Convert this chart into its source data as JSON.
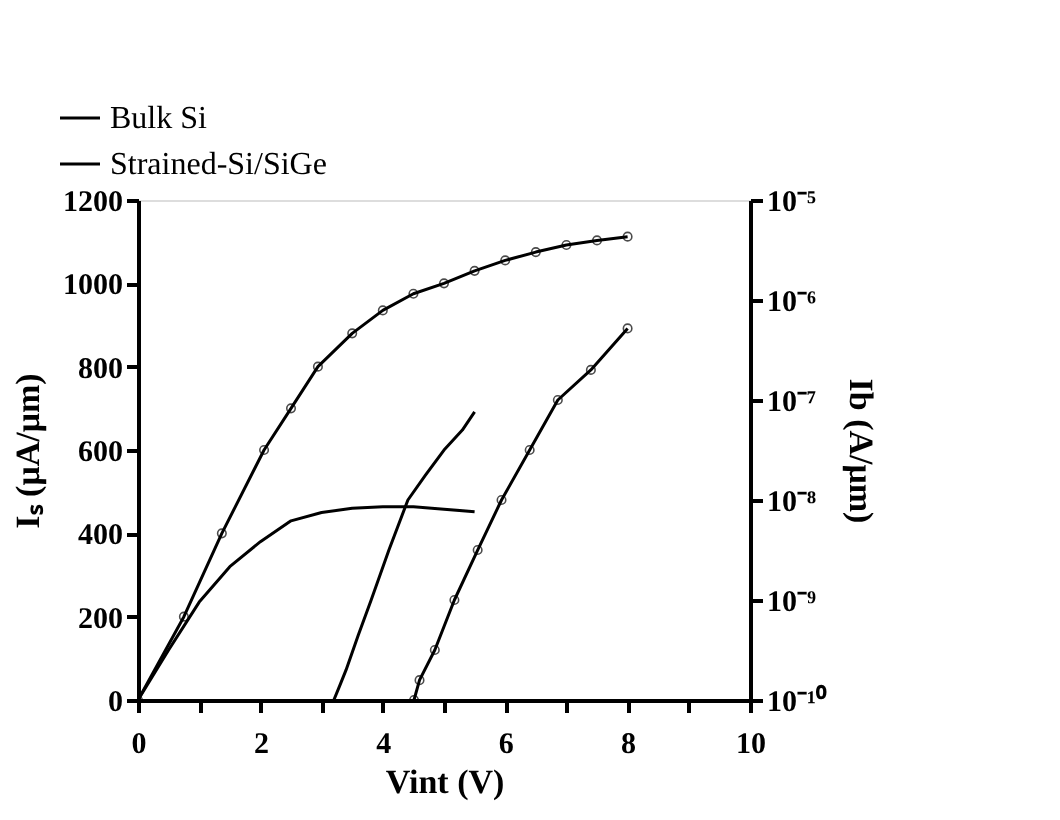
{
  "chart_data": {
    "type": "line",
    "xlabel": "Vint (V)",
    "ylabel": "Iₛ (μA/μm)",
    "y2label": "Ib (A/μm)",
    "xlim": [
      0,
      10
    ],
    "xticks": [
      0,
      {
        "value": 1,
        "label": null
      },
      2,
      {
        "value": 3,
        "label": null
      },
      4,
      {
        "value": 5,
        "label": null
      },
      6,
      {
        "value": 7,
        "label": null
      },
      8,
      {
        "value": 9,
        "label": null
      },
      10
    ],
    "ylim": [
      0,
      1200
    ],
    "yticks": [
      0,
      200,
      400,
      600,
      800,
      1000,
      1200
    ],
    "y2lim": [
      1e-10,
      1e-05
    ],
    "y2ticks": [
      {
        "value": 1e-10,
        "label": "10⁻¹⁰"
      },
      {
        "value": 1e-09,
        "label": "10⁻⁹"
      },
      {
        "value": 1e-08,
        "label": "10⁻⁸"
      },
      {
        "value": 1e-07,
        "label": "10⁻⁷"
      },
      {
        "value": 1e-06,
        "label": "10⁻⁶"
      },
      {
        "value": 1e-05,
        "label": "10⁻⁵"
      }
    ],
    "log": "y2",
    "grid": false,
    "legend": "top left",
    "series": [
      {
        "name": "Bulk Si",
        "color": "#000000",
        "marker": "circle",
        "line_style": "solid",
        "x": [
          0,
          0.75,
          1.37,
          2.06,
          2.5,
          2.94,
          3.5,
          4,
          4.5,
          5,
          5.5,
          6,
          6.5,
          7,
          7.5,
          8
        ],
        "values": [
          0,
          200,
          400,
          600,
          700,
          800,
          880,
          935,
          975,
          1000,
          1030,
          1055,
          1075,
          1092,
          1103,
          1112
        ]
      },
      {
        "name": "Strained-Si/SiGe",
        "color": "#000000",
        "marker": "none",
        "line_style": "solid",
        "x": [
          0,
          0.5,
          1,
          1.5,
          2,
          2.5,
          3,
          3.5,
          4,
          4.5,
          5,
          5.5
        ],
        "values": [
          0,
          120,
          235,
          320,
          380,
          430,
          450,
          460,
          464,
          464,
          458,
          452
        ]
      },
      {
        "color": "#000000",
        "marker": "circle",
        "line_style": "solid",
        "axis": "y2",
        "x": [
          4.51,
          4.6,
          4.85,
          5.17,
          5.55,
          5.94,
          6.4,
          6.86,
          7.4,
          8
        ],
        "values": [
          1e-10,
          1.58e-10,
          3.16e-10,
          1e-09,
          3.16e-09,
          1e-08,
          3.16e-08,
          1e-07,
          2e-07,
          5.2e-07
        ]
      },
      {
        "color": "#000000",
        "marker": "none",
        "line_style": "solid",
        "axis": "y2",
        "x": [
          3.2,
          3.3,
          3.4,
          3.6,
          3.81,
          4.1,
          4.41,
          4.7,
          5.0,
          5.3,
          5.5
        ],
        "values": [
          1e-10,
          1.41e-10,
          2e-10,
          4.47e-10,
          1e-09,
          3.16e-09,
          1e-08,
          1.78e-08,
          3.16e-08,
          5e-08,
          7.6e-08
        ]
      }
    ]
  }
}
